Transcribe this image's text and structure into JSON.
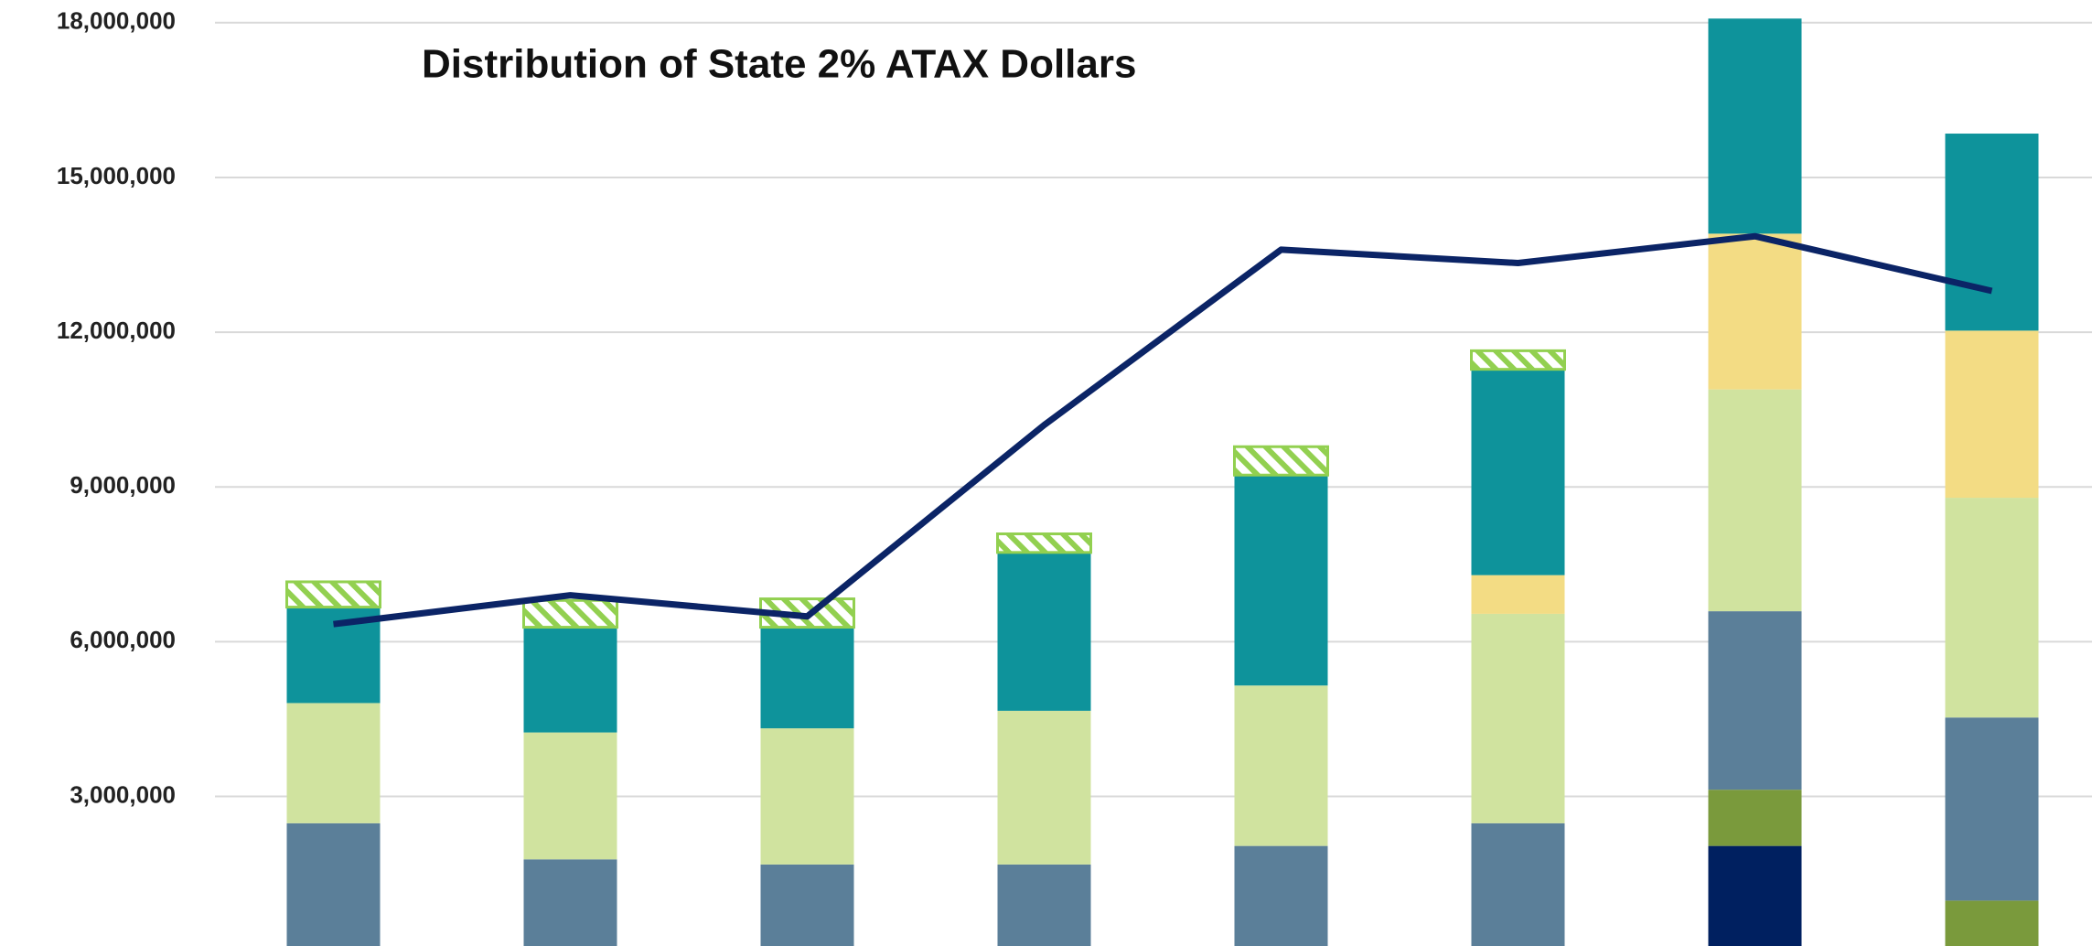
{
  "chart_data": {
    "type": "bar",
    "stacked": true,
    "title": "Distribution of State 2% ATAX Dollars",
    "categories": [
      null,
      null,
      null,
      null,
      null,
      null,
      null,
      null
    ],
    "ylim": [
      100000,
      18440000
    ],
    "yticks": [
      {
        "value": 3000000,
        "label": "3,000,000"
      },
      {
        "value": 6000000,
        "label": "6,000,000"
      },
      {
        "value": 9000000,
        "label": "9,000,000"
      },
      {
        "value": 12000000,
        "label": "12,000,000"
      },
      {
        "value": 15000000,
        "label": "15,000,000"
      },
      {
        "value": 18000000,
        "label": "18,000,000"
      }
    ],
    "grid": true,
    "series": [
      {
        "color": "#002060",
        "values": [
          null,
          null,
          null,
          null,
          null,
          null,
          2040000,
          null
        ]
      },
      {
        "color": "#7a9a3c",
        "values": [
          null,
          null,
          null,
          null,
          null,
          null,
          1090000,
          980000
        ]
      },
      {
        "color": "#5b7f99",
        "values": [
          2480000,
          1780000,
          1680000,
          1680000,
          2040000,
          2480000,
          3460000,
          3550000
        ]
      },
      {
        "color": "#d0e39f",
        "values": [
          2330000,
          2460000,
          2640000,
          2980000,
          3110000,
          4060000,
          4300000,
          4260000
        ]
      },
      {
        "color": "#f3dc84",
        "values": [
          null,
          null,
          null,
          null,
          null,
          750000,
          3020000,
          3240000
        ]
      },
      {
        "color": "#0e939b",
        "values": [
          1860000,
          2040000,
          1960000,
          3070000,
          4080000,
          3990000,
          4170000,
          3820000
        ]
      },
      {
        "color": "#92d050",
        "hatched": true,
        "values": [
          490000,
          520000,
          550000,
          360000,
          550000,
          360000,
          null,
          null
        ]
      },
      {
        "type": "line",
        "color": "#0b2466",
        "values": [
          6340000,
          6900000,
          6490000,
          10200000,
          13600000,
          13340000,
          13860000,
          12800000
        ]
      }
    ]
  }
}
